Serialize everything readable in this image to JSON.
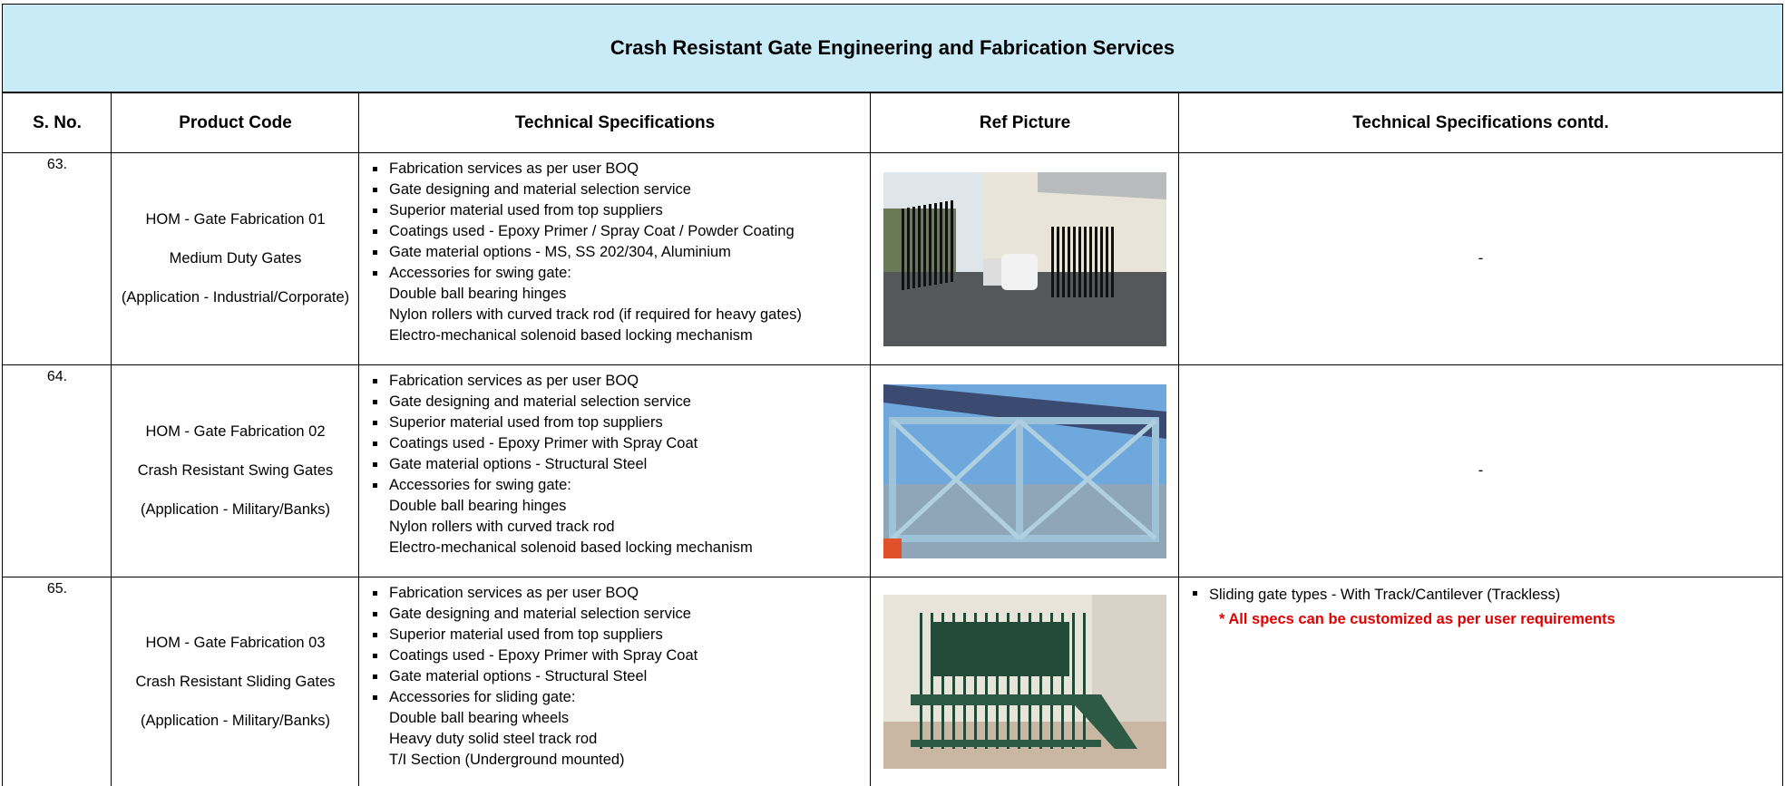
{
  "header": {
    "title": "Crash Resistant Gate Engineering and Fabrication Services"
  },
  "table": {
    "columns": [
      "S. No.",
      "Product Code",
      "Technical Specifications",
      "Ref Picture",
      "Technical Specifications contd."
    ],
    "rows": [
      {
        "sno": "63.",
        "product_code": "HOM - Gate Fabrication 01",
        "product_type": "Medium Duty Gates",
        "application": "(Application - Industrial/Corporate)",
        "specs": [
          "Fabrication services as per user BOQ",
          "Gate designing and material selection service",
          "Superior material used from top suppliers",
          "Coatings used - Epoxy Primer / Spray Coat / Powder Coating",
          "Gate material options - MS, SS 202/304, Aluminium",
          "Accessories for swing gate:"
        ],
        "sub_items": [
          "Double ball bearing hinges",
          "Nylon rollers with curved track rod (if required for heavy gates)",
          "Electro-mechanical solenoid based locking mechanism"
        ],
        "specs_contd": {
          "text": "-"
        }
      },
      {
        "sno": "64.",
        "product_code": "HOM - Gate Fabrication 02",
        "product_type": "Crash Resistant Swing Gates",
        "application": "(Application - Military/Banks)",
        "specs": [
          "Fabrication services as per user BOQ",
          "Gate designing and material selection service",
          "Superior material used from top suppliers",
          "Coatings used - Epoxy Primer with Spray Coat",
          "Gate material options - Structural Steel",
          "Accessories for swing gate:"
        ],
        "sub_items": [
          "Double ball bearing hinges",
          "Nylon rollers with curved track rod",
          "Electro-mechanical solenoid based locking mechanism"
        ],
        "specs_contd": {
          "text": "-"
        }
      },
      {
        "sno": "65.",
        "product_code": "HOM - Gate Fabrication 03",
        "product_type": "Crash Resistant Sliding Gates",
        "application": "(Application - Military/Banks)",
        "specs": [
          "Fabrication services as per user BOQ",
          "Gate designing and material selection service",
          "Superior material used from top suppliers",
          "Coatings used - Epoxy Primer with Spray Coat",
          "Gate material options - Structural Steel",
          "Accessories for sliding gate:"
        ],
        "sub_items": [
          "Double ball bearing wheels",
          "Heavy duty solid steel track rod",
          "T/I Section (Underground mounted)"
        ],
        "specs_contd": {
          "bullet": "Sliding gate types - With Track/Cantilever (Trackless)",
          "note": "* All specs can be customized as per user requirements"
        }
      }
    ]
  }
}
